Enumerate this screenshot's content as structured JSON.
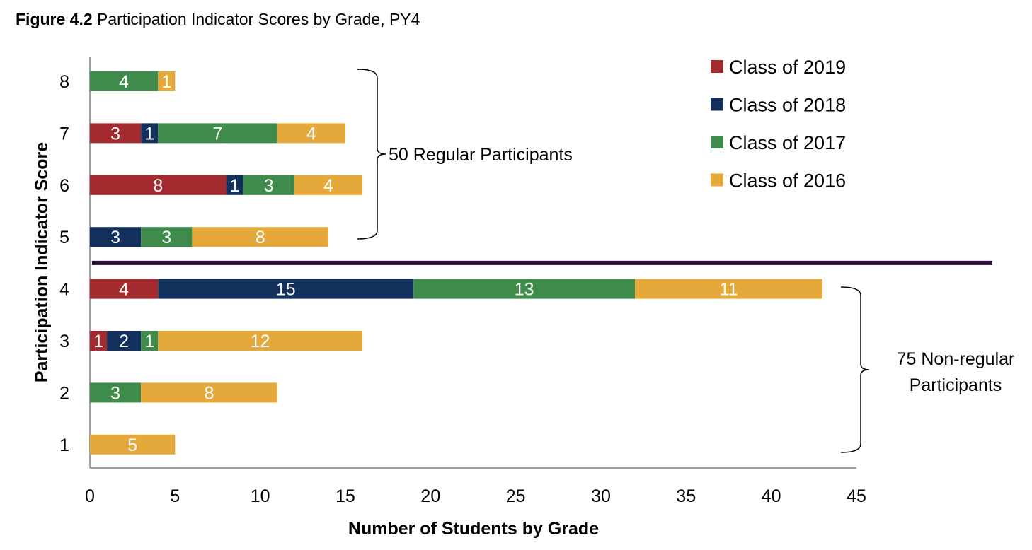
{
  "title": {
    "label": "Figure 4.2",
    "text": "Participation Indicator Scores by Grade, PY4"
  },
  "chart_data": {
    "type": "bar",
    "orientation": "horizontal",
    "stacked": true,
    "xlabel": "Number of Students by Grade",
    "ylabel": "Participation Indicator Score",
    "xlim": [
      0,
      45
    ],
    "xticks": [
      0,
      5,
      10,
      15,
      20,
      25,
      30,
      35,
      40,
      45
    ],
    "categories": [
      "8",
      "7",
      "6",
      "5",
      "4",
      "3",
      "2",
      "1"
    ],
    "series": [
      {
        "name": "Class of 2019",
        "color": "#a32a2e",
        "values": [
          0,
          3,
          8,
          0,
          4,
          1,
          0,
          0
        ]
      },
      {
        "name": "Class of 2018",
        "color": "#13305d",
        "values": [
          0,
          1,
          1,
          3,
          15,
          2,
          0,
          0
        ]
      },
      {
        "name": "Class of 2017",
        "color": "#3e8b4c",
        "values": [
          4,
          7,
          3,
          3,
          13,
          1,
          3,
          0
        ]
      },
      {
        "name": "Class of 2016",
        "color": "#e5a93b",
        "values": [
          1,
          4,
          4,
          8,
          11,
          12,
          8,
          5
        ]
      }
    ],
    "legend_position": "top-right",
    "grid": false,
    "divider": {
      "between_categories": [
        "5",
        "4"
      ],
      "color": "#2b0d3a"
    },
    "annotations": [
      {
        "text": "50 Regular Participants",
        "categories": [
          "8",
          "7",
          "6",
          "5"
        ]
      },
      {
        "text": "75 Non-regular Participants",
        "lines": [
          "75 Non-regular",
          "Participants"
        ],
        "categories": [
          "4",
          "3",
          "2",
          "1"
        ]
      }
    ]
  }
}
